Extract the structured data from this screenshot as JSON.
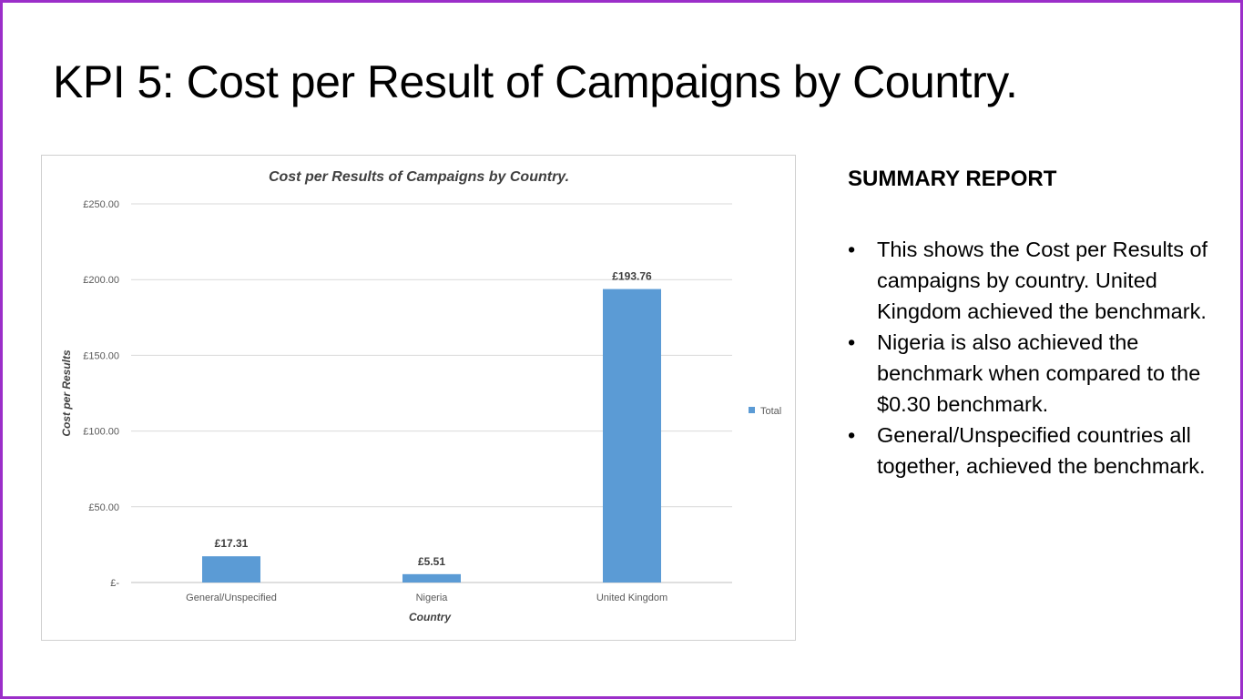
{
  "slide": {
    "title": "KPI 5: Cost per Result of Campaigns by Country."
  },
  "summary": {
    "heading": "SUMMARY REPORT",
    "bullets": [
      "This shows the Cost per Results of campaigns by country. United Kingdom achieved the benchmark.",
      "Nigeria is also achieved the benchmark when compared to the $0.30 benchmark.",
      "General/Unspecified countries all together, achieved the benchmark."
    ]
  },
  "colors": {
    "frame": "#9b2ec9",
    "bar": "#5b9bd5",
    "grid": "#d9d9d9"
  },
  "chart_data": {
    "type": "bar",
    "title": "Cost per Results of Campaigns by Country.",
    "xlabel": "Country",
    "ylabel": "Cost per Results",
    "categories": [
      "General/Unspecified",
      "Nigeria",
      "United Kingdom"
    ],
    "series": [
      {
        "name": "Total",
        "values": [
          17.31,
          5.51,
          193.76
        ],
        "labels": [
          "£17.31",
          "£5.51",
          "£193.76"
        ]
      }
    ],
    "ylim": [
      0,
      250
    ],
    "yticks": [
      0,
      50,
      100,
      150,
      200,
      250
    ],
    "ytick_labels": [
      "£-",
      "£50.00",
      "£100.00",
      "£150.00",
      "£200.00",
      "£250.00"
    ],
    "grid": true,
    "legend": "right"
  }
}
